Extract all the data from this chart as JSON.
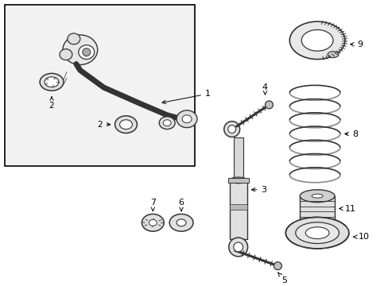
{
  "white": "#ffffff",
  "black": "#000000",
  "dk": "#333333",
  "bg_inset": "#f0f0f0",
  "shock_fill": "#e0e0e0",
  "part_fill": "#d8d8d8"
}
